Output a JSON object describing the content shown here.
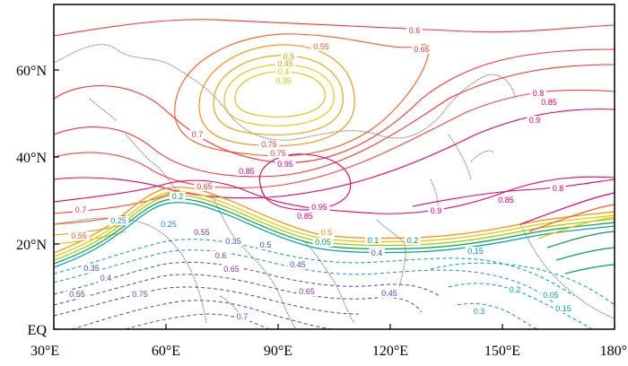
{
  "x_axis": {
    "ticks": [
      "30°E",
      "60°E",
      "90°E",
      "120°E",
      "150°E",
      "180°"
    ]
  },
  "y_axis": {
    "ticks": [
      "60°N",
      "40°N",
      "20°N",
      "EQ"
    ]
  },
  "colors": {
    "solid_high": "#e0006b",
    "solid_mid": "#ff5a1e",
    "solid_low": "#e6c400",
    "transition_green": "#00a050",
    "dashed_teal": "#00a0a0",
    "dashed_blue": "#3c50c8",
    "dashed_purple": "#7a3cb4",
    "coastline": "#808080"
  },
  "contour_labels": [
    {
      "text": "0.6",
      "color": "#ff3333"
    },
    {
      "text": "0.55",
      "color": "#ff5a1e"
    },
    {
      "text": "0.5",
      "color": "#ff8c00"
    },
    {
      "text": "0.45",
      "color": "#e6a000"
    },
    {
      "text": "0.4",
      "color": "#e6c400"
    },
    {
      "text": "0.35",
      "color": "#c8c800"
    },
    {
      "text": "0.65",
      "color": "#ff3030"
    },
    {
      "text": "0.8",
      "color": "#e0006b"
    },
    {
      "text": "0.85",
      "color": "#e0006b"
    },
    {
      "text": "0.9",
      "color": "#e0006b"
    },
    {
      "text": "0.7",
      "color": "#ff3a3a"
    },
    {
      "text": "0.75",
      "color": "#ff4040"
    },
    {
      "text": "0.95",
      "color": "#e0006b"
    },
    {
      "text": "0.75",
      "color": "#ff4040"
    },
    {
      "text": "0.85",
      "color": "#e0006b"
    },
    {
      "text": "0.65",
      "color": "#ff3030"
    },
    {
      "text": "0.2",
      "color": "#00a050"
    },
    {
      "text": "0.85",
      "color": "#e0006b"
    },
    {
      "text": "0.95",
      "color": "#e0006b"
    },
    {
      "text": "0.5",
      "color": "#ff8c00"
    },
    {
      "text": "0.1",
      "color": "#00a050"
    },
    {
      "text": "0.2",
      "color": "#00a050"
    },
    {
      "text": "0.05",
      "color": "#00a050"
    },
    {
      "text": "0.25",
      "color": "#2a8ad0"
    },
    {
      "text": "0.35",
      "color": "#3c50c8"
    },
    {
      "text": "0.55",
      "color": "#5a3cb4"
    },
    {
      "text": "0.55",
      "color": "#5a3cb4"
    },
    {
      "text": "0.6",
      "color": "#6a3cb4"
    },
    {
      "text": "0.65",
      "color": "#7a3cb4"
    },
    {
      "text": "0.75",
      "color": "#7a3cb4"
    },
    {
      "text": "0.7",
      "color": "#7a3cb4"
    },
    {
      "text": "0.65",
      "color": "#7a3cb4"
    },
    {
      "text": "0.45",
      "color": "#3c50c8"
    },
    {
      "text": "0.5",
      "color": "#4a46c0"
    },
    {
      "text": "0.45",
      "color": "#3c50c8"
    },
    {
      "text": "0.15",
      "color": "#00a0a0"
    },
    {
      "text": "0.2",
      "color": "#00a0a0"
    },
    {
      "text": "0.05",
      "color": "#00a0a0"
    },
    {
      "text": "0.3",
      "color": "#2a8ad0"
    },
    {
      "text": "0.15",
      "color": "#00a0a0"
    },
    {
      "text": "0.9",
      "color": "#e0006b"
    },
    {
      "text": "0.85",
      "color": "#e0006b"
    },
    {
      "text": "0.8",
      "color": "#e0006b"
    },
    {
      "text": "0.7",
      "color": "#ff3a3a"
    },
    {
      "text": "0.55",
      "color": "#ff5a1e"
    },
    {
      "text": "0.35",
      "color": "#3c50c8"
    },
    {
      "text": "0.4",
      "color": "#3c50c8"
    },
    {
      "text": "0.4",
      "color": "#3c50c8"
    },
    {
      "text": "0.25",
      "color": "#2a8ad0"
    }
  ]
}
